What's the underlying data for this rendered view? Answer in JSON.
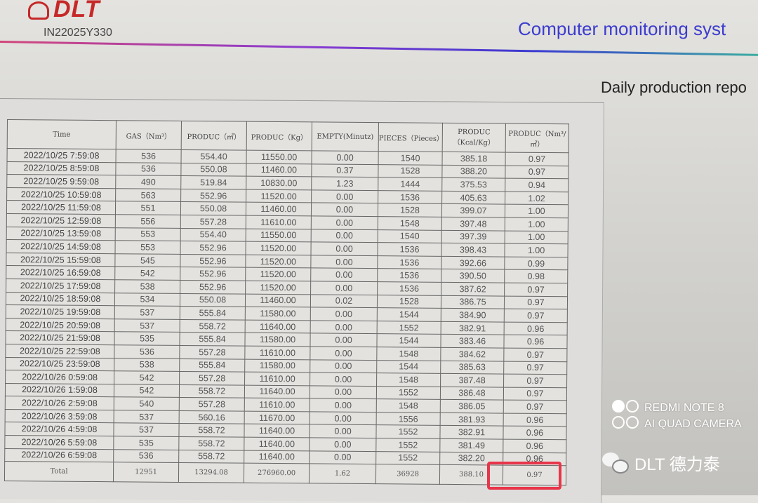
{
  "header": {
    "logo_text": "DLT",
    "model": "IN22025Y330",
    "title": "Computer monitoring syst",
    "subtitle": "Daily production repo"
  },
  "colors": {
    "brand_red": "#c62828",
    "title_blue": "#3c3ccf",
    "highlight": "#e8354a"
  },
  "table": {
    "columns": [
      "Time",
      "GAS（Nm³）",
      "PRODUC（㎡）",
      "PRODUC（Kg）",
      "EMPTY(Minutz)",
      "PIECES（Pieces）",
      "PRODUC（Kcal/Kg）",
      "PRODUC（Nm³/㎡）"
    ],
    "rows": [
      [
        "2022/10/25 7:59:08",
        "536",
        "554.40",
        "11550.00",
        "0.00",
        "1540",
        "385.18",
        "0.97"
      ],
      [
        "2022/10/25 8:59:08",
        "536",
        "550.08",
        "11460.00",
        "0.37",
        "1528",
        "388.20",
        "0.97"
      ],
      [
        "2022/10/25 9:59:08",
        "490",
        "519.84",
        "10830.00",
        "1.23",
        "1444",
        "375.53",
        "0.94"
      ],
      [
        "2022/10/25 10:59:08",
        "563",
        "552.96",
        "11520.00",
        "0.00",
        "1536",
        "405.63",
        "1.02"
      ],
      [
        "2022/10/25 11:59:08",
        "551",
        "550.08",
        "11460.00",
        "0.00",
        "1528",
        "399.07",
        "1.00"
      ],
      [
        "2022/10/25 12:59:08",
        "556",
        "557.28",
        "11610.00",
        "0.00",
        "1548",
        "397.48",
        "1.00"
      ],
      [
        "2022/10/25 13:59:08",
        "553",
        "554.40",
        "11550.00",
        "0.00",
        "1540",
        "397.39",
        "1.00"
      ],
      [
        "2022/10/25 14:59:08",
        "553",
        "552.96",
        "11520.00",
        "0.00",
        "1536",
        "398.43",
        "1.00"
      ],
      [
        "2022/10/25 15:59:08",
        "545",
        "552.96",
        "11520.00",
        "0.00",
        "1536",
        "392.66",
        "0.99"
      ],
      [
        "2022/10/25 16:59:08",
        "542",
        "552.96",
        "11520.00",
        "0.00",
        "1536",
        "390.50",
        "0.98"
      ],
      [
        "2022/10/25 17:59:08",
        "538",
        "552.96",
        "11520.00",
        "0.00",
        "1536",
        "387.62",
        "0.97"
      ],
      [
        "2022/10/25 18:59:08",
        "534",
        "550.08",
        "11460.00",
        "0.02",
        "1528",
        "386.75",
        "0.97"
      ],
      [
        "2022/10/25 19:59:08",
        "537",
        "555.84",
        "11580.00",
        "0.00",
        "1544",
        "384.90",
        "0.97"
      ],
      [
        "2022/10/25 20:59:08",
        "537",
        "558.72",
        "11640.00",
        "0.00",
        "1552",
        "382.91",
        "0.96"
      ],
      [
        "2022/10/25 21:59:08",
        "535",
        "555.84",
        "11580.00",
        "0.00",
        "1544",
        "383.46",
        "0.96"
      ],
      [
        "2022/10/25 22:59:08",
        "536",
        "557.28",
        "11610.00",
        "0.00",
        "1548",
        "384.62",
        "0.97"
      ],
      [
        "2022/10/25 23:59:08",
        "538",
        "555.84",
        "11580.00",
        "0.00",
        "1544",
        "385.63",
        "0.97"
      ],
      [
        "2022/10/26 0:59:08",
        "542",
        "557.28",
        "11610.00",
        "0.00",
        "1548",
        "387.48",
        "0.97"
      ],
      [
        "2022/10/26 1:59:08",
        "542",
        "558.72",
        "11640.00",
        "0.00",
        "1552",
        "386.48",
        "0.97"
      ],
      [
        "2022/10/26 2:59:08",
        "540",
        "557.28",
        "11610.00",
        "0.00",
        "1548",
        "386.05",
        "0.97"
      ],
      [
        "2022/10/26 3:59:08",
        "537",
        "560.16",
        "11670.00",
        "0.00",
        "1556",
        "381.93",
        "0.96"
      ],
      [
        "2022/10/26 4:59:08",
        "537",
        "558.72",
        "11640.00",
        "0.00",
        "1552",
        "382.91",
        "0.96"
      ],
      [
        "2022/10/26 5:59:08",
        "535",
        "558.72",
        "11640.00",
        "0.00",
        "1552",
        "381.49",
        "0.96"
      ],
      [
        "2022/10/26 6:59:08",
        "536",
        "558.72",
        "11640.00",
        "0.00",
        "1552",
        "382.20",
        "0.96"
      ]
    ],
    "total": [
      "Total",
      "12951",
      "13294.08",
      "276960.00",
      "1.62",
      "36928",
      "388.10",
      "0.97"
    ]
  },
  "watermark": {
    "line1": "REDMI NOTE 8",
    "line2": "AI QUAD CAMERA"
  },
  "wechat": {
    "icon": "wechat-icon",
    "label": "DLT 德力泰"
  }
}
